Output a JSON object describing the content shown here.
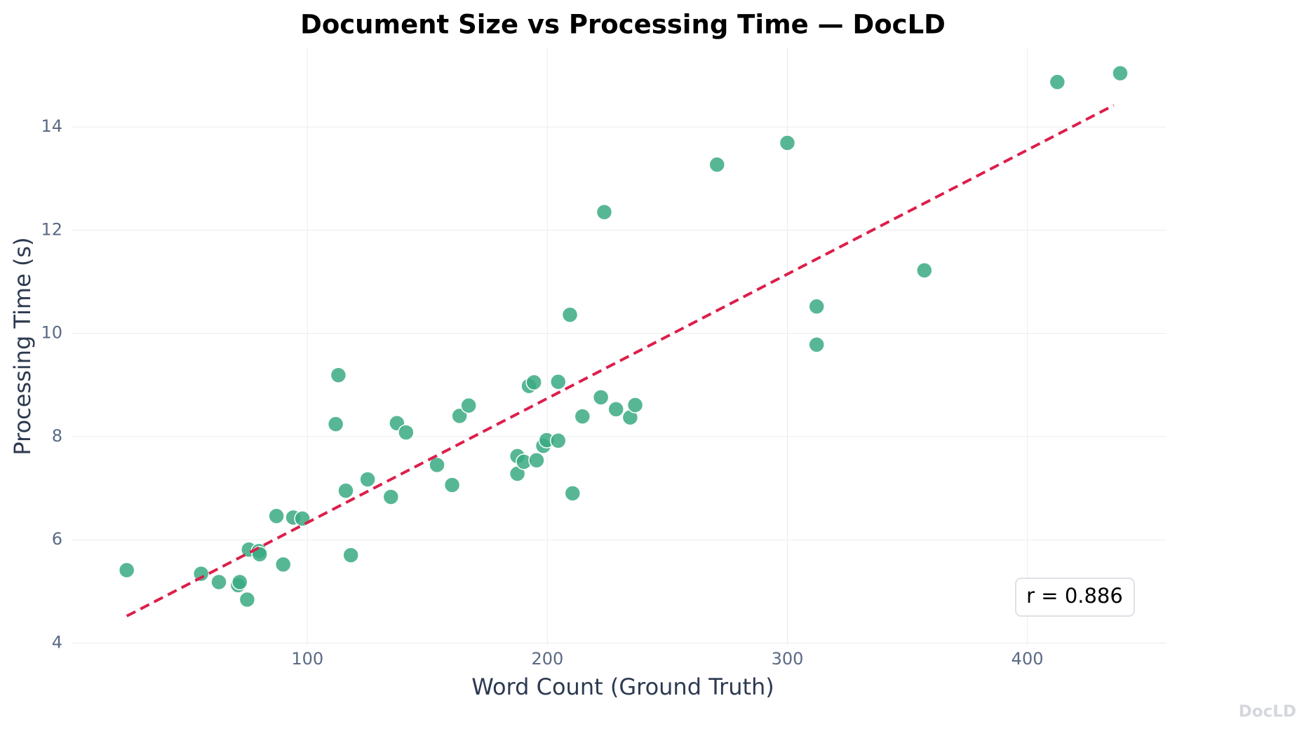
{
  "chart_data": {
    "type": "scatter",
    "title": "Document Size vs Processing Time — DocLD",
    "x_label": "Word Count (Ground Truth)",
    "y_label": "Processing Time (s)",
    "annotation": "r = 0.886",
    "watermark": "DocLD",
    "xlim": [
      2,
      458
    ],
    "ylim": [
      3.95,
      15.55
    ],
    "xticks": [
      100,
      200,
      300,
      400
    ],
    "yticks": [
      4,
      6,
      8,
      10,
      12,
      14
    ],
    "grid": true,
    "series": [
      {
        "color": "#3aaa82",
        "x": [
          24.7,
          55.7,
          63.1,
          71.1,
          71.8,
          74.9,
          75.6,
          79.8,
          80.1,
          89.9,
          87.1,
          94.1,
          97.9,
          111.8,
          112.9,
          116.0,
          118.1,
          125.1,
          134.8,
          137.3,
          141.1,
          154.0,
          160.3,
          163.4,
          167.2,
          187.5,
          187.5,
          190.2,
          192.3,
          194.4,
          195.5,
          198.3,
          199.7,
          204.5,
          204.5,
          209.4,
          210.5,
          214.6,
          222.3,
          223.7,
          228.6,
          234.5,
          236.6,
          270.7,
          300.0,
          312.2,
          312.2,
          357.1,
          412.5,
          438.7
        ],
        "values": [
          5.41,
          5.34,
          5.18,
          5.12,
          5.18,
          4.84,
          5.81,
          5.78,
          5.72,
          5.52,
          6.46,
          6.43,
          6.41,
          8.24,
          9.19,
          6.95,
          5.7,
          7.17,
          6.83,
          8.26,
          8.08,
          7.45,
          7.06,
          8.4,
          8.6,
          7.28,
          7.62,
          7.51,
          8.98,
          9.05,
          7.54,
          7.82,
          7.93,
          7.92,
          9.06,
          10.36,
          6.9,
          8.39,
          8.76,
          12.35,
          8.53,
          8.37,
          8.61,
          13.27,
          13.69,
          10.52,
          9.78,
          11.22,
          14.87,
          15.04
        ]
      }
    ],
    "trendline": {
      "color": "#dc1f4a",
      "x": [
        24.7,
        436.0
      ],
      "values": [
        4.52,
        14.42
      ]
    }
  }
}
